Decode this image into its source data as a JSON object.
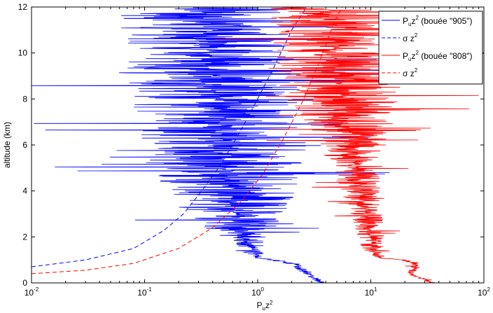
{
  "chart_data": {
    "type": "line",
    "title": "",
    "xlabel": {
      "base": "P",
      "sub": "u",
      "mid": "z",
      "sup": "2"
    },
    "ylabel": "altitude (km)",
    "xscale": "log",
    "xlim": [
      0.01,
      100
    ],
    "ylim": [
      0,
      12
    ],
    "grid": false,
    "legend_position": "top-right",
    "x_ticks": [
      {
        "value": 0.01,
        "base": "10",
        "exp": "-2"
      },
      {
        "value": 0.1,
        "base": "10",
        "exp": "-1"
      },
      {
        "value": 1,
        "base": "10",
        "exp": "0"
      },
      {
        "value": 10,
        "base": "10",
        "exp": "1"
      },
      {
        "value": 100,
        "base": "10",
        "exp": "2"
      }
    ],
    "y_ticks": [
      "0",
      "2",
      "4",
      "6",
      "8",
      "10",
      "12"
    ],
    "series": [
      {
        "name": "P_u z^2 (bouée \"905\")",
        "legend": {
          "base": "P",
          "sub": "u",
          "mid": "z",
          "sup": "2",
          "rest": " (bouée \"905\")"
        },
        "color": "#0000ff",
        "style": "solid",
        "x": [
          3.8,
          3.2,
          2.6,
          2.2,
          1.5,
          1.0,
          0.9,
          0.72,
          0.68,
          0.65,
          0.6,
          0.58,
          0.55,
          0.52,
          0.5,
          0.5,
          0.48,
          0.47,
          0.45,
          0.44,
          0.42,
          0.4,
          0.38,
          0.37,
          0.36,
          0.35,
          0.34
        ],
        "y": [
          0.0,
          0.2,
          0.5,
          0.8,
          0.95,
          1.1,
          1.5,
          2.0,
          2.5,
          3.0,
          3.5,
          4.0,
          4.5,
          5.0,
          5.5,
          6.0,
          6.5,
          7.0,
          7.5,
          8.0,
          8.5,
          9.0,
          9.5,
          10.0,
          10.5,
          11.0,
          12.0
        ],
        "spread": [
          0.05,
          0.05,
          0.05,
          0.05,
          0.05,
          0.05,
          0.1,
          0.2,
          0.35,
          0.45,
          0.55,
          0.6,
          0.65,
          0.7,
          0.7,
          0.75,
          0.75,
          0.75,
          0.75,
          0.75,
          0.75,
          0.75,
          0.75,
          0.75,
          0.75,
          0.75,
          0.75
        ]
      },
      {
        "name": "σ z^2",
        "legend": {
          "base": "σ",
          "sub": "",
          "mid": " z",
          "sup": "2",
          "rest": ""
        },
        "color": "#0000ff",
        "style": "dashed",
        "x": [
          0.01,
          0.03,
          0.08,
          0.15,
          0.22,
          0.32,
          0.45,
          0.65,
          0.95,
          1.4,
          2.0,
          2.7
        ],
        "y": [
          0.7,
          1.0,
          1.5,
          2.3,
          3.0,
          4.0,
          5.0,
          6.3,
          7.8,
          9.4,
          11.0,
          12.0
        ],
        "spread": []
      },
      {
        "name": "P_u z^2 (bouée \"808\")",
        "legend": {
          "base": "P",
          "sub": "u",
          "mid": "z",
          "sup": "2",
          "rest": " (bouée \"808\")"
        },
        "color": "#ff0000",
        "style": "solid",
        "x": [
          35,
          28,
          22,
          26,
          20,
          14,
          11,
          10.5,
          10,
          9.5,
          9.0,
          8.6,
          8.2,
          7.8,
          7.6,
          7.3,
          7.0,
          6.8,
          6.3,
          6.0,
          5.7,
          5.5,
          5.3,
          5.1,
          5.0,
          4.8,
          4.6,
          4.4,
          4.2
        ],
        "y": [
          0.0,
          0.2,
          0.4,
          0.8,
          1.0,
          1.05,
          1.2,
          1.5,
          2.0,
          2.5,
          3.0,
          3.5,
          4.0,
          4.5,
          5.0,
          5.5,
          6.0,
          6.5,
          7.0,
          7.5,
          8.0,
          8.5,
          9.0,
          9.5,
          10.0,
          10.5,
          11.0,
          11.5,
          12.0
        ],
        "spread": [
          0.03,
          0.03,
          0.03,
          0.05,
          0.05,
          0.05,
          0.05,
          0.1,
          0.12,
          0.14,
          0.15,
          0.16,
          0.18,
          0.2,
          0.22,
          0.25,
          0.3,
          0.35,
          0.4,
          0.45,
          0.5,
          0.55,
          0.55,
          0.55,
          0.55,
          0.55,
          0.55,
          0.55,
          0.55
        ]
      },
      {
        "name": "σ z^2",
        "legend": {
          "base": "σ",
          "sub": "",
          "mid": " z",
          "sup": "2",
          "rest": ""
        },
        "color": "#ff0000",
        "style": "dashed",
        "x": [
          0.01,
          0.03,
          0.08,
          0.2,
          0.4,
          0.7,
          1.1,
          1.7,
          2.5,
          3.5,
          4.8,
          5.6
        ],
        "y": [
          0.4,
          0.55,
          0.85,
          1.5,
          2.4,
          3.5,
          4.7,
          6.3,
          7.9,
          9.6,
          11.4,
          12.0
        ],
        "spread": []
      }
    ]
  }
}
